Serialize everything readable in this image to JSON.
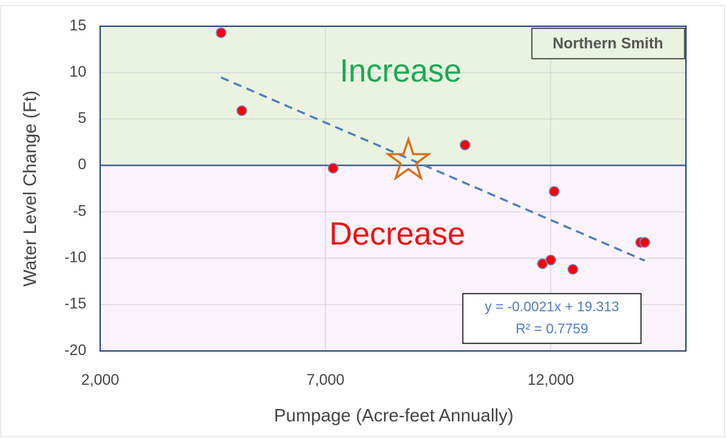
{
  "chart_data": {
    "type": "scatter",
    "x_label": "Pumpage (Acre-feet Annually)",
    "y_label": "Water Level Change (Ft)",
    "legend_label": "Northern Smith",
    "x": [
      4684,
      5144,
      7169,
      10098,
      12077,
      11816,
      12000,
      12491,
      13994,
      14086
    ],
    "values": [
      14.3,
      5.9,
      -0.3,
      2.2,
      -2.8,
      -10.6,
      -10.2,
      -11.2,
      -8.3,
      -8.3
    ],
    "color": "#ff0000",
    "xlim": [
      2000,
      15000
    ],
    "ylim": [
      -20,
      15
    ],
    "xticks": [
      {
        "value": 2000,
        "label": "2,000"
      },
      {
        "value": 7000,
        "label": "7,000"
      },
      {
        "value": 12000,
        "label": "12,000"
      }
    ],
    "yticks": [
      15,
      10,
      5,
      0,
      -5,
      -10,
      -15,
      -20
    ],
    "grid": true,
    "regions": [
      {
        "label": "Increase",
        "range": [
          0,
          15
        ],
        "color": "#eaf3df",
        "text_color": "#1aaa55"
      },
      {
        "label": "Decrease",
        "range": [
          -20,
          0
        ],
        "color": "#fbf3fb",
        "text_color": "#ee1111"
      }
    ],
    "trendline": {
      "slope": -0.0021,
      "intercept": 19.313,
      "x": [
        4684,
        14086
      ],
      "color": "#4f7cc0",
      "equation": "y = -0.0021x + 19.313",
      "r_squared": "R² = 0.7759"
    },
    "highlight": {
      "x": 8840,
      "y": 0.5,
      "color": "#d96c14"
    }
  }
}
